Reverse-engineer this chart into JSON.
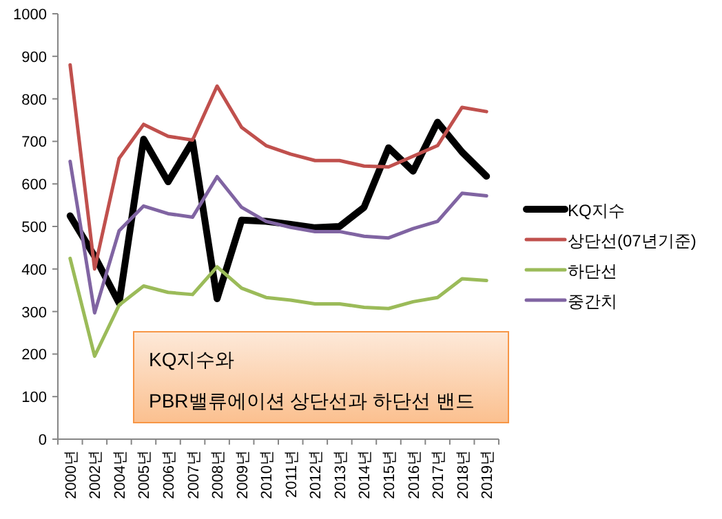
{
  "chart_data": {
    "type": "line",
    "categories": [
      "2000년",
      "2002년",
      "2004년",
      "2005년",
      "2006년",
      "2007년",
      "2008년",
      "2009년",
      "2010년",
      "2011년",
      "2012년",
      "2013년",
      "2014년",
      "2015년",
      "2016년",
      "2017년",
      "2018년",
      "2019년"
    ],
    "series": [
      {
        "name": "KQ지수",
        "color": "#000000",
        "values": [
          525,
          430,
          320,
          705,
          605,
          700,
          330,
          515,
          512,
          505,
          497,
          500,
          545,
          685,
          630,
          745,
          675,
          618
        ]
      },
      {
        "name": "상단선(07년기준)",
        "color": "#c0504d",
        "values": [
          880,
          400,
          660,
          740,
          712,
          703,
          830,
          733,
          690,
          670,
          655,
          655,
          642,
          640,
          665,
          690,
          780,
          770
        ]
      },
      {
        "name": "하단선",
        "color": "#9bbb59",
        "values": [
          425,
          195,
          315,
          360,
          345,
          340,
          405,
          355,
          333,
          327,
          318,
          318,
          310,
          307,
          323,
          333,
          377,
          373
        ]
      },
      {
        "name": "중간치",
        "color": "#8064a2",
        "values": [
          653,
          297,
          490,
          548,
          530,
          522,
          617,
          545,
          512,
          498,
          488,
          488,
          477,
          473,
          495,
          512,
          578,
          572
        ]
      }
    ],
    "ylim": [
      0,
      1000
    ],
    "yticks": [
      0,
      100,
      200,
      300,
      400,
      500,
      600,
      700,
      800,
      900,
      1000
    ],
    "grid": false,
    "legend": "right",
    "marker": "none",
    "line_style": "solid",
    "annotations": [
      "KQ지수와",
      "PBR밸류에이션 상단선과 하단선 밴드"
    ]
  }
}
